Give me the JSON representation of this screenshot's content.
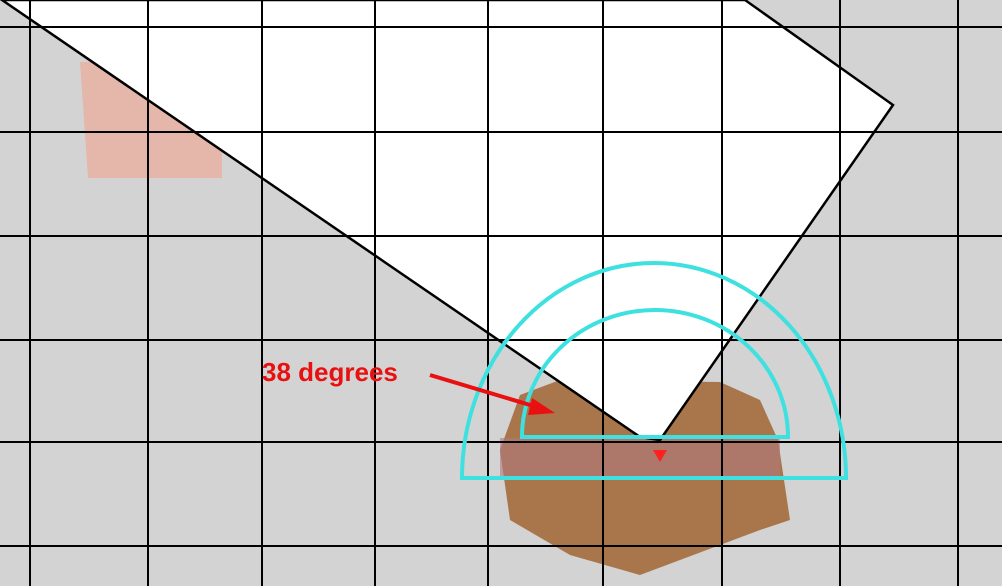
{
  "annotation": {
    "label": "38 degrees"
  }
}
